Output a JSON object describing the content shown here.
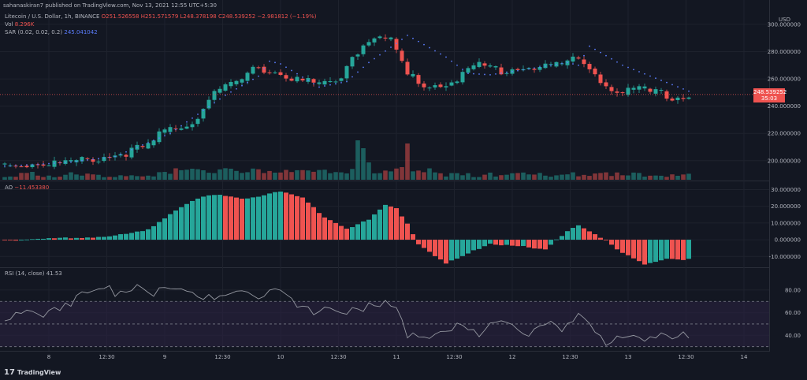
{
  "header": {
    "text": "sahanaskiran7 published on TradingView.com, Nov 13, 2021 12:55 UTC+5:30"
  },
  "legend": {
    "ohlc": {
      "symbol": "Litecoin / U.S. Dollar, 1h, BINANCE",
      "o": "O251.526558",
      "h": "H251.571579",
      "l": "L248.378198",
      "c": "C248.539252",
      "chg": "−2.981812 (−1.19%)"
    },
    "vol": {
      "label": "Vol",
      "value": "8.296K"
    },
    "sar": {
      "label": "SAR (0.02, 0.02, 0.2)",
      "value": "245.041042"
    },
    "ao": {
      "label": "AO",
      "value": "−11.453380"
    },
    "rsi": {
      "label": "RSI (14, close)",
      "value": "41.53"
    }
  },
  "price_axis": {
    "currency": "USD",
    "last_price": "248.539252",
    "countdown": "35:03"
  },
  "brand": {
    "logo": "17",
    "name": "TradingView"
  },
  "colors": {
    "bull": "#26a69a",
    "bear": "#ef5350",
    "sar": "#5b7cfa",
    "rsi": "#9598a1",
    "band": "#2a2240",
    "bg": "#131722",
    "grid": "#1e222d"
  },
  "chart_data": [
    {
      "type": "candlestick",
      "title": "Litecoin / U.S. Dollar, 1h, BINANCE",
      "y_ticks": [
        "200.000000",
        "220.000000",
        "240.000000",
        "260.000000",
        "280.000000",
        "300.000000"
      ],
      "ylim": [
        186,
        304
      ],
      "x_ticks": [
        "8",
        "12:30",
        "9",
        "12:30",
        "10",
        "12:30",
        "11",
        "12:30",
        "12",
        "12:30",
        "13",
        "12:30",
        "14"
      ],
      "x_tick_index": [
        8,
        18.5,
        29,
        39.5,
        50,
        60.5,
        71,
        81.5,
        92,
        102.5,
        113,
        123.5,
        134
      ],
      "anchors": [
        [
          0,
          199
        ],
        [
          8,
          200
        ],
        [
          12,
          200
        ],
        [
          20,
          206
        ],
        [
          26,
          212
        ],
        [
          29,
          224
        ],
        [
          34,
          230
        ],
        [
          38,
          252
        ],
        [
          42,
          258
        ],
        [
          46,
          271
        ],
        [
          50,
          265
        ],
        [
          56,
          258
        ],
        [
          60,
          258
        ],
        [
          63,
          278
        ],
        [
          66,
          292
        ],
        [
          70,
          290
        ],
        [
          73,
          265
        ],
        [
          77,
          256
        ],
        [
          82,
          262
        ],
        [
          86,
          272
        ],
        [
          90,
          268
        ],
        [
          94,
          270
        ],
        [
          100,
          272
        ],
        [
          104,
          276
        ],
        [
          106,
          270
        ],
        [
          108,
          262
        ],
        [
          110,
          253
        ],
        [
          116,
          253
        ],
        [
          122,
          248
        ],
        [
          124,
          249
        ]
      ],
      "sar_flip_points": [
        [
          0,
          196
        ],
        [
          5,
          197
        ],
        [
          12,
          199
        ],
        [
          20,
          203
        ],
        [
          30,
          220
        ],
        [
          40,
          248
        ],
        [
          46,
          262
        ],
        [
          48,
          273
        ],
        [
          50,
          271
        ],
        [
          57,
          254
        ],
        [
          62,
          258
        ],
        [
          66,
          272
        ],
        [
          71,
          286
        ],
        [
          73,
          292
        ],
        [
          80,
          276
        ],
        [
          84,
          264
        ],
        [
          88,
          263
        ],
        [
          93,
          266
        ],
        [
          102,
          272
        ],
        [
          104,
          270
        ],
        [
          106,
          284
        ],
        [
          112,
          270
        ],
        [
          124,
          251
        ]
      ],
      "volume": {
        "series_name": "Vol",
        "spikes": [
          [
            5,
            10
          ],
          [
            34,
            14
          ],
          [
            36,
            12
          ],
          [
            64,
            50
          ],
          [
            65,
            40
          ],
          [
            66,
            22
          ],
          [
            73,
            46
          ],
          [
            72,
            16
          ]
        ]
      }
    },
    {
      "type": "histogram",
      "name": "AO",
      "y_ticks": [
        "-10.000000",
        "0.000000",
        "10.000000",
        "20.000000",
        "30.000000"
      ],
      "ylim": [
        -16,
        34
      ],
      "anchors": [
        [
          0,
          0.2
        ],
        [
          10,
          1
        ],
        [
          20,
          2.5
        ],
        [
          26,
          6
        ],
        [
          30,
          16
        ],
        [
          34,
          24
        ],
        [
          38,
          27
        ],
        [
          44,
          25
        ],
        [
          48,
          28
        ],
        [
          50,
          29
        ],
        [
          54,
          25
        ],
        [
          58,
          14
        ],
        [
          62,
          7
        ],
        [
          66,
          12
        ],
        [
          69,
          21
        ],
        [
          71,
          19
        ],
        [
          73,
          10
        ],
        [
          75,
          -2
        ],
        [
          80,
          -14
        ],
        [
          84,
          -8
        ],
        [
          88,
          -2
        ],
        [
          92,
          -3
        ],
        [
          98,
          -6
        ],
        [
          102,
          6
        ],
        [
          104,
          9
        ],
        [
          108,
          2
        ],
        [
          112,
          -8
        ],
        [
          116,
          -14
        ],
        [
          120,
          -11
        ],
        [
          124,
          -11.45
        ]
      ]
    },
    {
      "type": "line",
      "name": "RSI",
      "y_ticks": [
        "40.00",
        "60.00",
        "80.00"
      ],
      "ylim": [
        27,
        98
      ],
      "band": [
        30,
        70
      ],
      "midline": 50,
      "anchors": [
        [
          0,
          55
        ],
        [
          8,
          66
        ],
        [
          12,
          74
        ],
        [
          20,
          82
        ],
        [
          24,
          90
        ],
        [
          26,
          82
        ],
        [
          30,
          84
        ],
        [
          34,
          78
        ],
        [
          38,
          80
        ],
        [
          42,
          84
        ],
        [
          46,
          75
        ],
        [
          50,
          84
        ],
        [
          54,
          70
        ],
        [
          58,
          64
        ],
        [
          62,
          60
        ],
        [
          66,
          72
        ],
        [
          69,
          74
        ],
        [
          71,
          68
        ],
        [
          73,
          40
        ],
        [
          77,
          40
        ],
        [
          82,
          56
        ],
        [
          86,
          46
        ],
        [
          90,
          50
        ],
        [
          94,
          44
        ],
        [
          98,
          58
        ],
        [
          102,
          50
        ],
        [
          104,
          58
        ],
        [
          106,
          50
        ],
        [
          108,
          38
        ],
        [
          112,
          46
        ],
        [
          116,
          40
        ],
        [
          120,
          39
        ],
        [
          124,
          41.5
        ]
      ]
    }
  ]
}
